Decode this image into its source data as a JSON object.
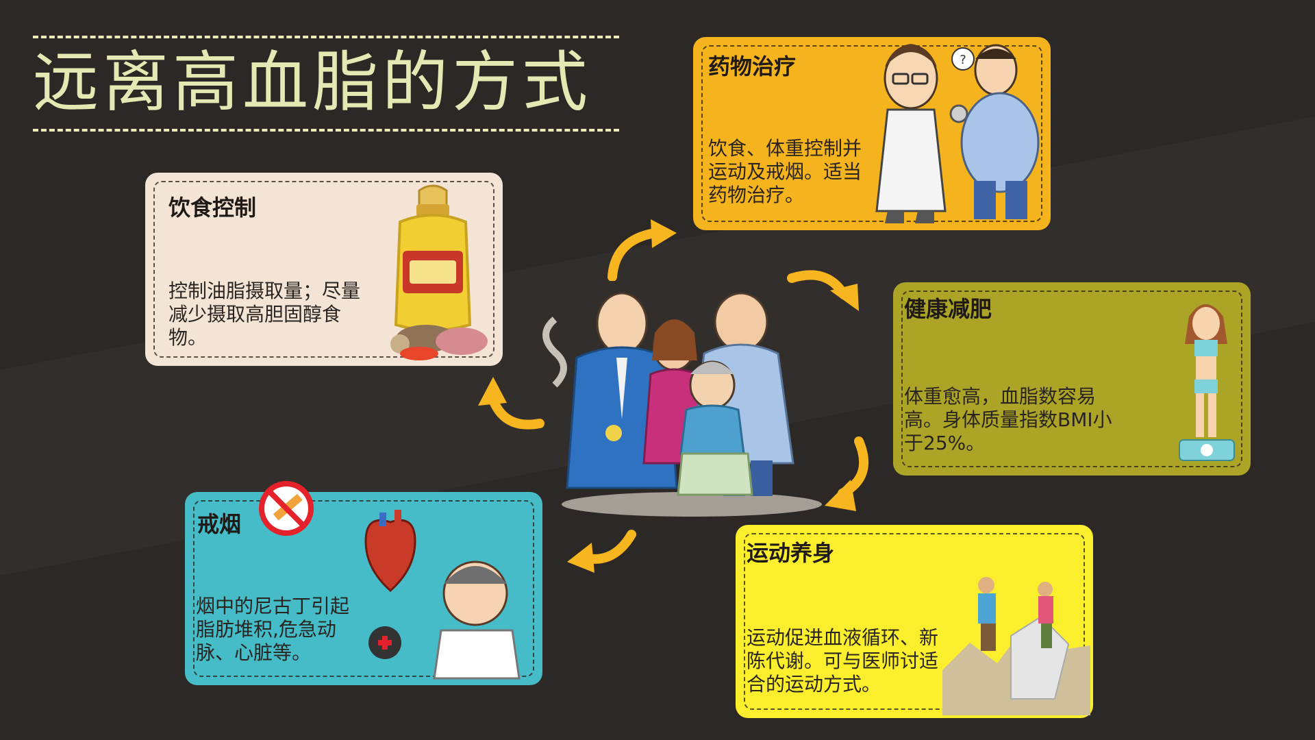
{
  "title": "远离高血脂的方式",
  "cards": {
    "diet": {
      "title": "饮食控制",
      "body": "控制油脂摄取量；尽量减少摄取高胆固醇食物。",
      "illustration": "oil-bottle-and-meat-icon"
    },
    "drug": {
      "title": "药物治疗",
      "body": "饮食、体重控制并运动及戒烟。适当药物治疗。",
      "illustration": "doctor-and-patient-icon"
    },
    "weight": {
      "title": "健康减肥",
      "body": "体重愈高，血脂数容易高。身体质量指数BMI小于25%。",
      "illustration": "woman-on-scale-icon"
    },
    "exercise": {
      "title": "运动养身",
      "body": "运动促进血液循环、新陈代谢。可与医师讨适合的运动方式。",
      "illustration": "hikers-icon"
    },
    "smoke": {
      "title": "戒烟",
      "body": "烟中的尼古丁引起脂肪堆积,危急动脉、心脏等。",
      "illustration": "heart-and-sick-man-icon"
    }
  },
  "colors": {
    "background": "#2b2826",
    "title": "#e4e8b2",
    "diet_card": "#f4e4d5",
    "drug_card": "#f5b31e",
    "weight_card": "#aca427",
    "exercise_card": "#fbef2d",
    "smoke_card": "#45bcc8",
    "arrow": "#f7b51f"
  }
}
